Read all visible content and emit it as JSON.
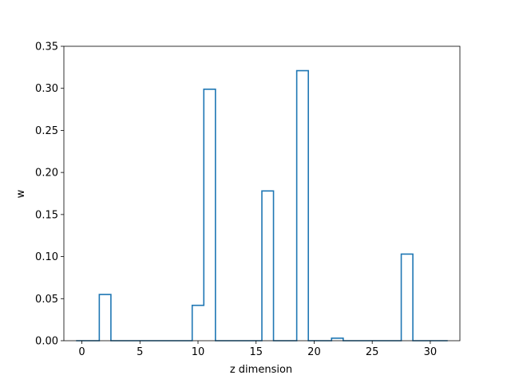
{
  "chart_data": {
    "type": "bar",
    "style": "step-histogram",
    "xlabel": "z dimension",
    "ylabel": "w",
    "xlim": [
      -1.55,
      32.55
    ],
    "ylim": [
      0,
      0.35
    ],
    "x": [
      0,
      1,
      2,
      3,
      4,
      5,
      6,
      7,
      8,
      9,
      10,
      11,
      12,
      13,
      14,
      15,
      16,
      17,
      18,
      19,
      20,
      21,
      22,
      23,
      24,
      25,
      26,
      27,
      28,
      29,
      30,
      31
    ],
    "values": [
      0,
      0,
      0.055,
      0,
      0,
      0,
      0,
      0,
      0,
      0,
      0.042,
      0.299,
      0,
      0,
      0,
      0,
      0.178,
      0,
      0,
      0.321,
      0,
      0,
      0.003,
      0,
      0,
      0,
      0,
      0,
      0.103,
      0,
      0,
      0
    ],
    "xticks": [
      0,
      5,
      10,
      15,
      20,
      25,
      30
    ],
    "xtick_labels": [
      "0",
      "5",
      "10",
      "15",
      "20",
      "25",
      "30"
    ],
    "yticks": [
      0,
      0.05,
      0.1,
      0.15,
      0.2,
      0.25,
      0.3,
      0.35
    ],
    "ytick_labels": [
      "0.00",
      "0.05",
      "0.10",
      "0.15",
      "0.20",
      "0.25",
      "0.30",
      "0.35"
    ],
    "color": "#1f77b4",
    "grid": false,
    "legend": false
  }
}
